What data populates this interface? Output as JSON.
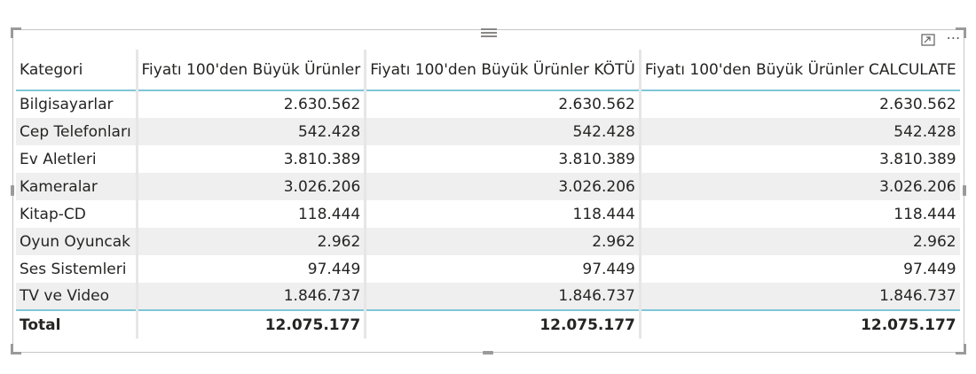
{
  "table": {
    "headers": [
      "Kategori",
      "Fiyatı 100'den Büyük Ürünler",
      "Fiyatı 100'den Büyük Ürünler KÖTÜ",
      "Fiyatı 100'den Büyük Ürünler CALCULATE"
    ],
    "rows": [
      [
        "Bilgisayarlar",
        "2.630.562",
        "2.630.562",
        "2.630.562"
      ],
      [
        "Cep Telefonları",
        "542.428",
        "542.428",
        "542.428"
      ],
      [
        "Ev Aletleri",
        "3.810.389",
        "3.810.389",
        "3.810.389"
      ],
      [
        "Kameralar",
        "3.026.206",
        "3.026.206",
        "3.026.206"
      ],
      [
        "Kitap-CD",
        "118.444",
        "118.444",
        "118.444"
      ],
      [
        "Oyun Oyuncak",
        "2.962",
        "2.962",
        "2.962"
      ],
      [
        "Ses Sistemleri",
        "97.449",
        "97.449",
        "97.449"
      ],
      [
        "TV ve Video",
        "1.846.737",
        "1.846.737",
        "1.846.737"
      ]
    ],
    "total": [
      "Total",
      "12.075.177",
      "12.075.177",
      "12.075.177"
    ]
  },
  "visual_header": {
    "focus_icon": "focus-mode-icon",
    "more_icon": "more-options-icon",
    "more_glyph": "⋯",
    "grip_icon": "drag-grip-icon"
  },
  "colors": {
    "header_rule": "#7fc6d6",
    "alt_row": "#efefef",
    "frame": "#c8c6c4"
  }
}
